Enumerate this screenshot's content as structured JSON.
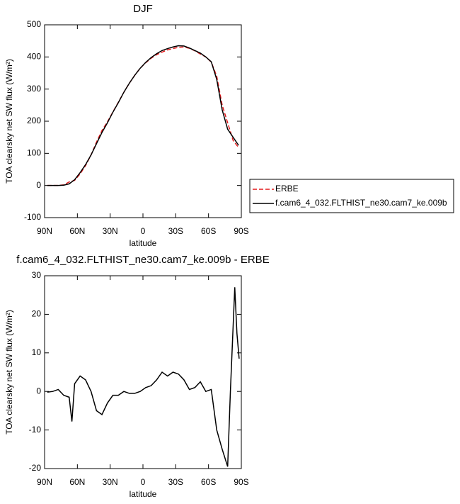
{
  "chart_data": [
    {
      "type": "line",
      "title": "DJF",
      "xlabel": "latitude",
      "ylabel": "TOA clearsky net SW flux (W/m²)",
      "x": [
        87.5,
        82.5,
        77.5,
        72.5,
        67.5,
        62.5,
        57.5,
        52.5,
        47.5,
        42.5,
        37.5,
        32.5,
        27.5,
        22.5,
        17.5,
        12.5,
        7.5,
        2.5,
        -2.5,
        -7.5,
        -12.5,
        -17.5,
        -22.5,
        -27.5,
        -32.5,
        -37.5,
        -42.5,
        -47.5,
        -52.5,
        -57.5,
        -62.5,
        -67.5,
        -72.5,
        -77.5,
        -82.5,
        -87.5
      ],
      "series": [
        {
          "name": "ERBE",
          "color": "#e41a1c",
          "dashed": true,
          "values": [
            0,
            0,
            0,
            2,
            11,
            16,
            36,
            62,
            95,
            135,
            171,
            198,
            229,
            259,
            290,
            318,
            343,
            365,
            382,
            396,
            407,
            415,
            422,
            426,
            430,
            431,
            427,
            419,
            409,
            400,
            384,
            340,
            250,
            195,
            140,
            118
          ]
        },
        {
          "name": "f.cam6_4_032.FLTHIST_ne30.cam7_ke.009b",
          "color": "#000000",
          "dashed": false,
          "values": [
            0,
            0,
            0,
            1,
            5,
            18,
            40,
            65,
            95,
            130,
            165,
            195,
            228,
            258,
            290,
            318,
            343,
            365,
            383,
            398,
            410,
            420,
            426,
            431,
            435,
            434,
            428,
            420,
            412,
            400,
            385,
            330,
            235,
            175,
            150,
            125
          ]
        }
      ],
      "xlim": [
        90,
        -90
      ],
      "xticks": [
        {
          "value": 90,
          "label": "90N"
        },
        {
          "value": 60,
          "label": "60N"
        },
        {
          "value": 30,
          "label": "30N"
        },
        0,
        {
          "value": -30,
          "label": "30S"
        },
        {
          "value": -60,
          "label": "60S"
        },
        {
          "value": -90,
          "label": "90S"
        }
      ],
      "ylim": [
        -100,
        500
      ],
      "yticks": [
        -100,
        0,
        100,
        200,
        300,
        400,
        500
      ],
      "legend": "right"
    },
    {
      "type": "line",
      "title": "f.cam6_4_032.FLTHIST_ne30.cam7_ke.009b - ERBE",
      "xlabel": "latitude",
      "ylabel": "TOA clearsky net SW flux (W/m²)",
      "x": [
        87.5,
        82.5,
        77.5,
        72.5,
        67.5,
        65,
        62.5,
        57.5,
        52.5,
        47.5,
        42.5,
        37.5,
        32.5,
        27.5,
        22.5,
        17.5,
        12.5,
        7.5,
        2.5,
        -2.5,
        -7.5,
        -12.5,
        -17.5,
        -22.5,
        -27.5,
        -32.5,
        -37.5,
        -42.5,
        -47.5,
        -52.5,
        -57.5,
        -62.5,
        -67.5,
        -72.5,
        -77.5,
        -80,
        -84,
        -86,
        -88
      ],
      "values": [
        -0.2,
        0,
        0.5,
        -1,
        -1.5,
        -7.8,
        2,
        4,
        3,
        0,
        -5,
        -6,
        -3,
        -1,
        -1,
        0,
        -0.5,
        -0.5,
        0,
        1,
        1.5,
        3,
        5,
        4,
        5,
        4.5,
        3,
        0.5,
        1,
        2.5,
        0,
        0.5,
        -10,
        -15,
        -19.5,
        0,
        27,
        15,
        8.5
      ],
      "color": "#000000",
      "xlim": [
        90,
        -90
      ],
      "xticks": [
        {
          "value": 90,
          "label": "90N"
        },
        {
          "value": 60,
          "label": "60N"
        },
        {
          "value": 30,
          "label": "30N"
        },
        0,
        {
          "value": -30,
          "label": "30S"
        },
        {
          "value": -60,
          "label": "60S"
        },
        {
          "value": -90,
          "label": "90S"
        }
      ],
      "ylim": [
        -20,
        30
      ],
      "yticks": [
        -20,
        -10,
        0,
        10,
        20,
        30
      ]
    }
  ]
}
